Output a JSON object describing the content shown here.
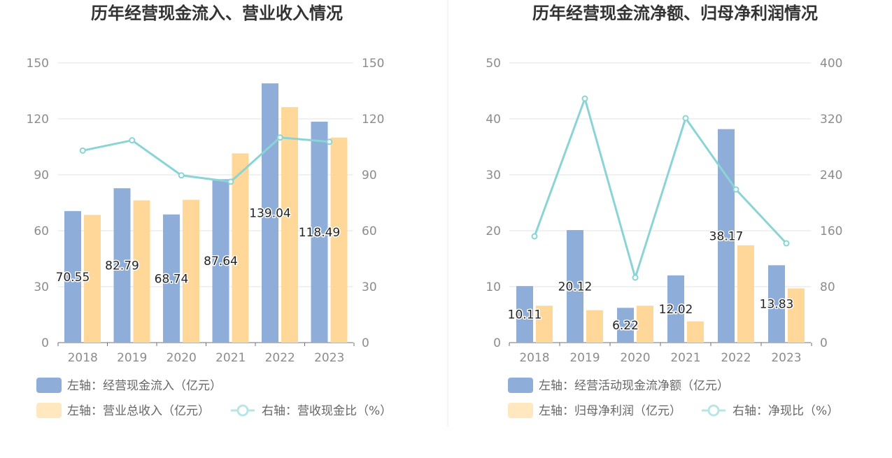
{
  "chart_data": [
    {
      "type": "bar",
      "title": "历年经营现金流入、营业收入情况",
      "categories": [
        "2018",
        "2019",
        "2020",
        "2021",
        "2022",
        "2023"
      ],
      "left_axis": {
        "min": 0,
        "max": 150,
        "ticks": [
          0,
          30,
          60,
          90,
          120,
          150
        ]
      },
      "right_axis": {
        "min": 0,
        "max": 150,
        "ticks": [
          0,
          30,
          60,
          90,
          120,
          150
        ]
      },
      "series": [
        {
          "name": "左轴：经营现金流入（亿元）",
          "type": "bar",
          "axis": "left",
          "color": "#8eadd8",
          "values": [
            70.55,
            82.79,
            68.74,
            87.64,
            139.04,
            118.49
          ],
          "show_labels": true
        },
        {
          "name": "左轴：营业总收入（亿元）",
          "type": "bar",
          "axis": "left",
          "color": "#ffd899",
          "values": [
            68.5,
            76.3,
            76.6,
            101.5,
            126.3,
            110.0
          ],
          "show_labels": false
        },
        {
          "name": "右轴：营收现金比（%）",
          "type": "line",
          "axis": "right",
          "color": "#8ad4d6",
          "values": [
            103.0,
            108.5,
            89.7,
            86.3,
            110.0,
            107.7
          ],
          "show_labels": false
        }
      ]
    },
    {
      "type": "bar",
      "title": "历年经营现金流净额、归母净利润情况",
      "categories": [
        "2018",
        "2019",
        "2020",
        "2021",
        "2022",
        "2023"
      ],
      "left_axis": {
        "min": 0,
        "max": 50,
        "ticks": [
          0,
          10,
          20,
          30,
          40,
          50
        ]
      },
      "right_axis": {
        "min": 0,
        "max": 400,
        "ticks": [
          0,
          80,
          160,
          240,
          320,
          400
        ]
      },
      "series": [
        {
          "name": "左轴：经营活动现金流净额（亿元）",
          "type": "bar",
          "axis": "left",
          "color": "#8eadd8",
          "values": [
            10.11,
            20.12,
            6.22,
            12.02,
            38.17,
            13.83
          ],
          "show_labels": true
        },
        {
          "name": "左轴：归母净利润（亿元）",
          "type": "bar",
          "axis": "left",
          "color": "#ffd899",
          "values": [
            6.6,
            5.8,
            6.6,
            3.8,
            17.4,
            9.7
          ],
          "show_labels": false
        },
        {
          "name": "右轴：净现比（%）",
          "type": "line",
          "axis": "right",
          "color": "#8ad4d6",
          "values": [
            152,
            349,
            93,
            321,
            219,
            142
          ],
          "show_labels": false
        }
      ]
    }
  ]
}
